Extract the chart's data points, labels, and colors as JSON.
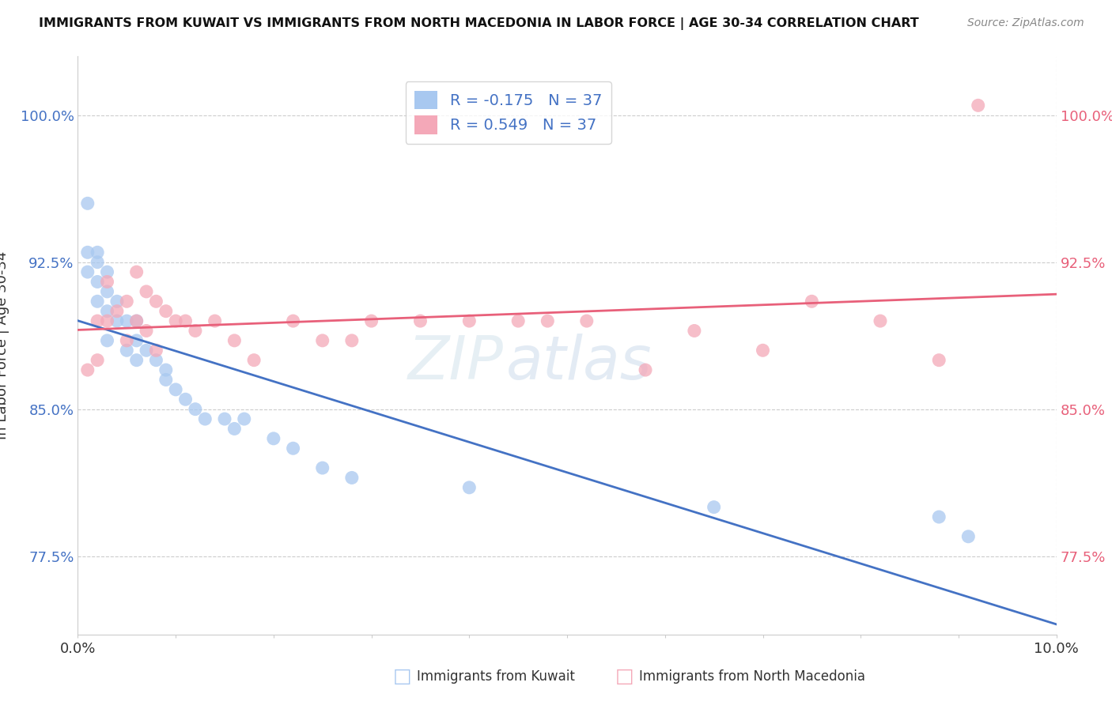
{
  "title": "IMMIGRANTS FROM KUWAIT VS IMMIGRANTS FROM NORTH MACEDONIA IN LABOR FORCE | AGE 30-34 CORRELATION CHART",
  "source": "Source: ZipAtlas.com",
  "ylabel": "In Labor Force | Age 30-34",
  "legend_labels": [
    "Immigrants from Kuwait",
    "Immigrants from North Macedonia"
  ],
  "R_kuwait": -0.175,
  "N_kuwait": 37,
  "R_macedonia": 0.549,
  "N_macedonia": 37,
  "xlim": [
    0.0,
    0.1
  ],
  "ylim": [
    0.735,
    1.03
  ],
  "yticks": [
    0.775,
    0.85,
    0.925,
    1.0
  ],
  "ytick_labels": [
    "77.5%",
    "85.0%",
    "92.5%",
    "100.0%"
  ],
  "xticks": [
    0.0,
    0.01,
    0.02,
    0.03,
    0.04,
    0.05,
    0.06,
    0.07,
    0.08,
    0.09,
    0.1
  ],
  "xtick_labels_show": [
    "0.0%",
    "",
    "",
    "",
    "",
    "",
    "",
    "",
    "",
    "",
    "10.0%"
  ],
  "kuwait_color": "#a8c8f0",
  "kuwait_line_color": "#4472c4",
  "macedonia_color": "#f4a8b8",
  "macedonia_line_color": "#e8607a",
  "background_color": "#ffffff",
  "watermark_zip": "ZIP",
  "watermark_atlas": "atlas",
  "kuwait_x": [
    0.001,
    0.001,
    0.001,
    0.002,
    0.002,
    0.002,
    0.002,
    0.003,
    0.003,
    0.003,
    0.003,
    0.004,
    0.004,
    0.005,
    0.005,
    0.006,
    0.006,
    0.006,
    0.007,
    0.008,
    0.009,
    0.009,
    0.01,
    0.011,
    0.012,
    0.013,
    0.015,
    0.016,
    0.017,
    0.02,
    0.022,
    0.025,
    0.028,
    0.04,
    0.065,
    0.088,
    0.091
  ],
  "kuwait_y": [
    0.955,
    0.93,
    0.92,
    0.93,
    0.925,
    0.915,
    0.905,
    0.92,
    0.91,
    0.9,
    0.885,
    0.905,
    0.895,
    0.895,
    0.88,
    0.895,
    0.885,
    0.875,
    0.88,
    0.875,
    0.87,
    0.865,
    0.86,
    0.855,
    0.85,
    0.845,
    0.845,
    0.84,
    0.845,
    0.835,
    0.83,
    0.82,
    0.815,
    0.81,
    0.8,
    0.795,
    0.785
  ],
  "macedonia_x": [
    0.001,
    0.002,
    0.002,
    0.003,
    0.003,
    0.004,
    0.005,
    0.005,
    0.006,
    0.006,
    0.007,
    0.007,
    0.008,
    0.008,
    0.009,
    0.01,
    0.011,
    0.012,
    0.014,
    0.016,
    0.018,
    0.022,
    0.025,
    0.028,
    0.03,
    0.035,
    0.04,
    0.045,
    0.048,
    0.052,
    0.058,
    0.063,
    0.07,
    0.075,
    0.082,
    0.088,
    0.092
  ],
  "macedonia_y": [
    0.87,
    0.895,
    0.875,
    0.915,
    0.895,
    0.9,
    0.905,
    0.885,
    0.92,
    0.895,
    0.91,
    0.89,
    0.905,
    0.88,
    0.9,
    0.895,
    0.895,
    0.89,
    0.895,
    0.885,
    0.875,
    0.895,
    0.885,
    0.885,
    0.895,
    0.895,
    0.895,
    0.895,
    0.895,
    0.895,
    0.87,
    0.89,
    0.88,
    0.905,
    0.895,
    0.875,
    1.005
  ],
  "legend_R_color": "#4472c4",
  "legend_N_color": "#4472c4"
}
